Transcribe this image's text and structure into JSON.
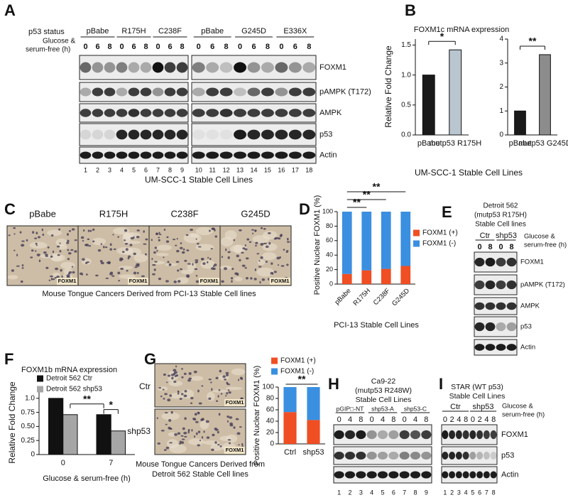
{
  "panels": {
    "A": {
      "label": "A",
      "status": "p53 status",
      "condition": [
        "Glucose &",
        "serum-free (h)"
      ],
      "groups": [
        "pBabe",
        "R175H",
        "C238F",
        "pBabe",
        "G245D",
        "E336X"
      ],
      "times": [
        "0",
        "6",
        "8"
      ],
      "rows": [
        "FOXM1",
        "pAMPK (T172)",
        "AMPK",
        "p53",
        "Actin"
      ],
      "lanes": [
        1,
        2,
        3,
        4,
        5,
        6,
        7,
        8,
        9,
        10,
        11,
        12,
        13,
        14,
        15,
        16,
        17,
        18
      ],
      "caption": "UM-SCC-1 Stable Cell Lines"
    },
    "B": {
      "label": "B",
      "title": "FOXM1c mRNA expression",
      "y_label": "Relative Fold Change",
      "caption": "UM-SCC-1 Stable Cell Lines"
    },
    "C": {
      "label": "C",
      "groups": [
        "pBabe",
        "R175H",
        "C238F",
        "G245D"
      ],
      "stain": "FOXM1",
      "caption": "Mouse Tongue Cancers Derived from PCI-13 Stable Cell lines"
    },
    "D": {
      "label": "D"
    },
    "E": {
      "label": "E",
      "header": [
        "Detroit 562",
        "(mutp53 R175H)",
        "Stable Cell lines"
      ],
      "groups": [
        "Ctr",
        "shp53"
      ],
      "condition": [
        "Glucose &",
        "serum-free (h)"
      ],
      "times": [
        "0",
        "8"
      ],
      "rows": [
        "FOXM1",
        "pAMPK (T172)",
        "AMPK",
        "p53",
        "Actin"
      ]
    },
    "F": {
      "label": "F"
    },
    "G": {
      "label": "G",
      "conditions": [
        "Ctr",
        "shp53"
      ],
      "stain": "FOXM1",
      "caption": [
        "Mouse Tongue Cancers Derived from",
        "Detroit 562 Stable Cell lines"
      ]
    },
    "H": {
      "label": "H",
      "header": [
        "Ca9-22",
        "(mutp53 R248W)",
        "Stable Cell Lines"
      ],
      "groups": [
        "pGIP□-NT",
        "shp53-A",
        "shp53-C"
      ],
      "times": [
        "0",
        "4",
        "8"
      ],
      "lanes": [
        1,
        2,
        3,
        4,
        5,
        6,
        7,
        8,
        9
      ]
    },
    "I": {
      "label": "I",
      "header": [
        "STAR (WT p53)",
        "Stable Cell Lines"
      ],
      "groups": [
        "Ctr",
        "shp53"
      ],
      "condition": [
        "Glucose &",
        "serum-free (h)"
      ],
      "times": [
        "0",
        "2",
        "4",
        "8"
      ],
      "rows": [
        "FOXM1",
        "p53",
        "Actin"
      ],
      "lanes": [
        1,
        2,
        3,
        4,
        5,
        6,
        7,
        8
      ]
    }
  },
  "chart_data": [
    {
      "type": "bar",
      "categories": [
        "pBabe",
        "mutp53 R175H"
      ],
      "values": [
        1.0,
        1.42
      ],
      "colors": [
        "#1a1a1a",
        "#b9c5cf"
      ],
      "ylim": [
        0,
        1.6
      ],
      "yticks": [
        {
          "value": 0,
          "label": "0.0"
        },
        0.5,
        {
          "value": 1,
          "label": "1.0"
        },
        1.5
      ],
      "annotations": [
        "*"
      ]
    },
    {
      "type": "bar",
      "categories": [
        "pBabe",
        "mutp53 G245D"
      ],
      "values": [
        1.0,
        3.35
      ],
      "colors": [
        "#1a1a1a",
        "#8c8c8c"
      ],
      "ylim": [
        0,
        4
      ],
      "yticks": [
        0,
        1,
        2,
        3,
        4
      ],
      "annotations": [
        "**"
      ]
    },
    {
      "type": "stacked_bar",
      "y_label": "Positive Nuclear FOXM1 (%)",
      "x_label": "PCI-13 Stable Cell Lines",
      "categories": [
        "pBabe",
        "R175H",
        "C238F",
        "G245D"
      ],
      "series": [
        {
          "name": "FOXM1 (+)",
          "color": "#f04e23",
          "values": [
            14,
            19,
            21,
            25
          ]
        },
        {
          "name": "FOXM1 (-)",
          "color": "#3b8fe0",
          "values": [
            86,
            81,
            79,
            75
          ]
        }
      ],
      "ylim": [
        0,
        100
      ],
      "yticks": [
        0,
        20,
        40,
        60,
        80,
        100
      ],
      "annotations": [
        "**",
        "**",
        "**"
      ],
      "legend": "right"
    },
    {
      "type": "grouped_bar",
      "title": "FOXM1b mRNA expression",
      "y_label": "Relative Fold Change",
      "x_label": "Glucose & serum-free (h)",
      "categories": [
        "0",
        "7"
      ],
      "series": [
        {
          "name": "Detroit 562 Ctr",
          "color": "#111111",
          "values": [
            1.0,
            0.71
          ]
        },
        {
          "name": "Detroit 562 shp53",
          "color": "#a6a6a6",
          "values": [
            0.71,
            0.42
          ]
        }
      ],
      "ylim": [
        0,
        1.2
      ],
      "yticks": [
        0,
        0.25,
        {
          "value": 0.5,
          "label": "0.50"
        },
        0.75,
        {
          "value": 1,
          "label": "1.0"
        }
      ],
      "annotations": [
        "**",
        "*"
      ],
      "legend": "top left"
    },
    {
      "type": "stacked_bar",
      "y_label": "Positive Nuclear FOXM1 (%)",
      "categories": [
        "Ctrl",
        "shp53"
      ],
      "series": [
        {
          "name": "FOXM1 (+)",
          "color": "#f04e23",
          "values": [
            56,
            42
          ]
        },
        {
          "name": "FOXM1 (-)",
          "color": "#3b8fe0",
          "values": [
            44,
            58
          ]
        }
      ],
      "ylim": [
        0,
        100
      ],
      "yticks": [
        0,
        20,
        40,
        60,
        80,
        100
      ],
      "annotations": [
        "**"
      ],
      "legend": "top"
    }
  ]
}
